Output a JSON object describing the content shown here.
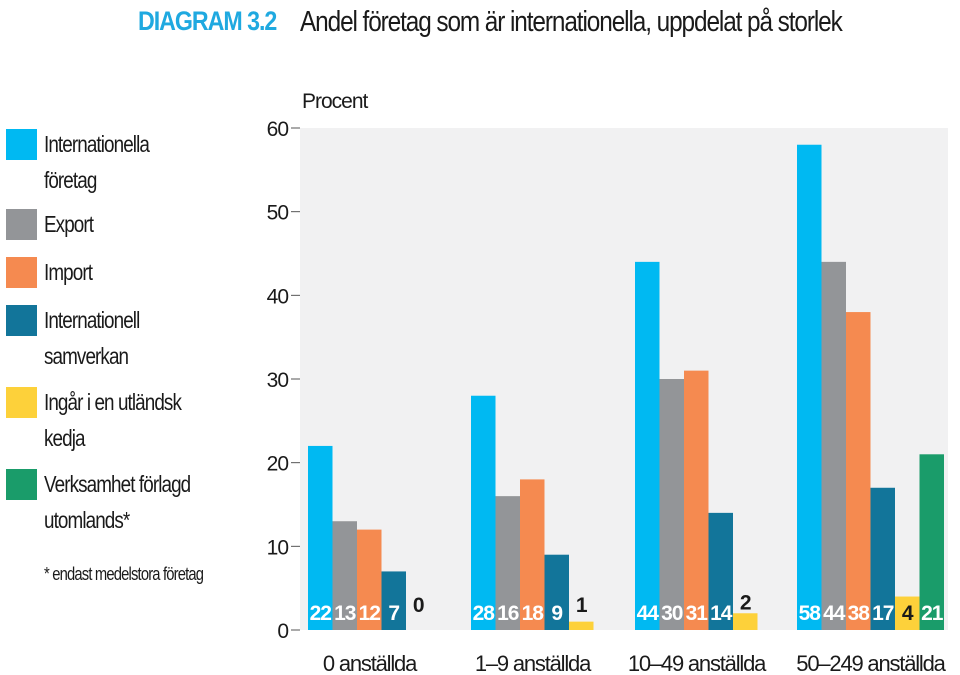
{
  "header": {
    "number": "DIAGRAM 3.2",
    "title": "Andel företag som är internationella, uppdelat på storlek"
  },
  "legend": {
    "items": [
      {
        "label": "Internationella företag",
        "color": "#00b9f2"
      },
      {
        "label": "Export",
        "color": "#939598"
      },
      {
        "label": "Import",
        "color": "#f58a50"
      },
      {
        "label": "Internationell samverkan",
        "color": "#12759a"
      },
      {
        "label": "Ingår i en utländsk kedja",
        "color": "#fdd13a"
      },
      {
        "label": "Verksamhet förlagd utomlands*",
        "color": "#1a9c6a"
      }
    ],
    "note": "* endast medelstora företag"
  },
  "chart_data": {
    "type": "bar",
    "ylabel": "Procent",
    "ylim": [
      0,
      60
    ],
    "yticks": [
      0,
      10,
      20,
      30,
      40,
      50,
      60
    ],
    "grid": false,
    "categories": [
      "0 anställda",
      "1–9 anställda",
      "10–49 anställda",
      "50–249 anställda"
    ],
    "series": [
      {
        "name": "Internationella företag",
        "color": "#00b9f2",
        "values": [
          22,
          28,
          44,
          58
        ]
      },
      {
        "name": "Export",
        "color": "#939598",
        "values": [
          13,
          16,
          30,
          44
        ]
      },
      {
        "name": "Import",
        "color": "#f58a50",
        "values": [
          12,
          18,
          31,
          38
        ]
      },
      {
        "name": "Internationell samverkan",
        "color": "#12759a",
        "values": [
          7,
          9,
          14,
          17
        ]
      },
      {
        "name": "Ingår i en utländsk kedja",
        "color": "#fdd13a",
        "values": [
          0,
          1,
          2,
          4
        ]
      },
      {
        "name": "Verksamhet förlagd utomlands*",
        "color": "#1a9c6a",
        "values": [
          null,
          null,
          null,
          21
        ]
      }
    ],
    "data_labels": [
      [
        "22",
        "28",
        "44",
        "58"
      ],
      [
        "13",
        "16",
        "30",
        "44"
      ],
      [
        "12",
        "18",
        "31",
        "38"
      ],
      [
        "7",
        "9",
        "14",
        "17"
      ],
      [
        "0",
        "1",
        "2",
        "4"
      ],
      [
        "",
        "",
        "",
        "21"
      ]
    ],
    "background": "#f1f1f2"
  }
}
